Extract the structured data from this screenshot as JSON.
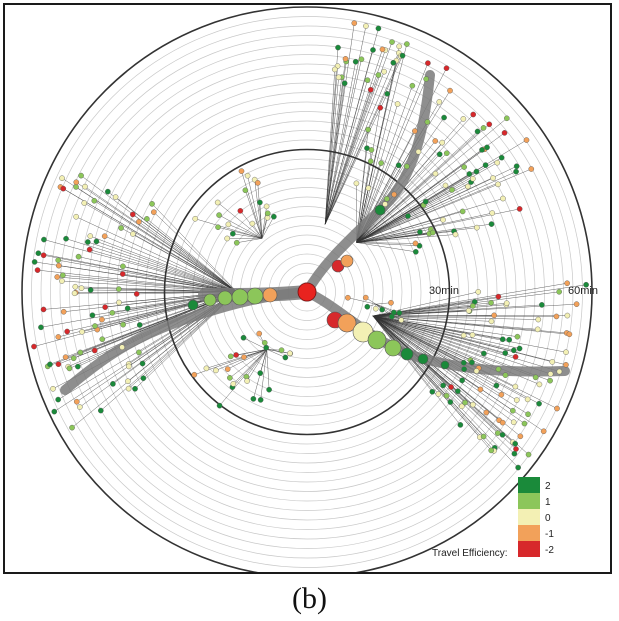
{
  "figure": {
    "caption": "(b)",
    "ring_labels": [
      "30min",
      "60min"
    ],
    "legend": {
      "title": "Travel Efficiency:",
      "items": [
        {
          "label": "2",
          "color": "#1a8a3a"
        },
        {
          "label": "1",
          "color": "#8cc65a"
        },
        {
          "label": "0",
          "color": "#f3f0b4"
        },
        {
          "label": "-1",
          "color": "#f2a15a"
        },
        {
          "label": "-2",
          "color": "#d7282b"
        }
      ]
    },
    "colors": {
      "ring_major": "#333333",
      "ring_minor": "#c8c8c8",
      "trunk": "#7a7a7a",
      "edge": "#333333",
      "root": "#e8231f"
    }
  }
}
